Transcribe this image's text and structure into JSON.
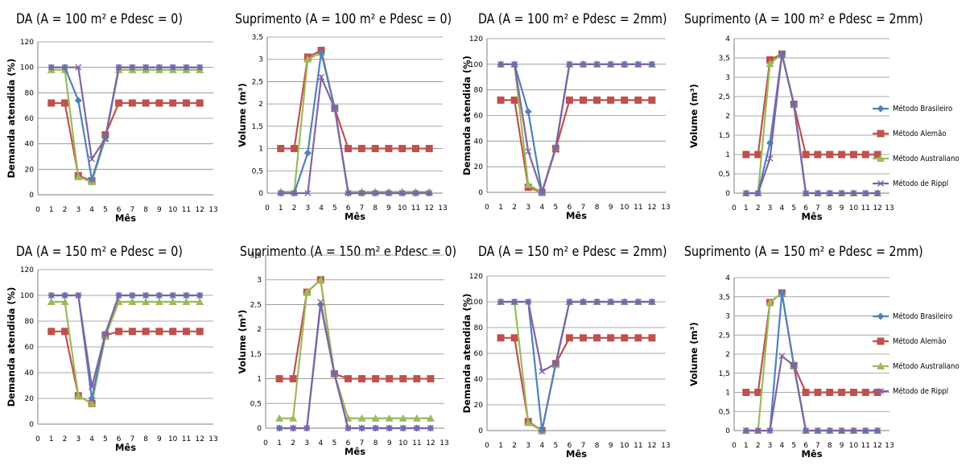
{
  "series_style": [
    {
      "name": "Método Brasileiro",
      "color": "#4F81BD",
      "marker": "diamond"
    },
    {
      "name": "Método Alemão",
      "color": "#C0504D",
      "marker": "square"
    },
    {
      "name": "Método Australiano",
      "color": "#9BBB59",
      "marker": "triangle"
    },
    {
      "name": "Método de Rippl",
      "color": "#8064A2",
      "marker": "x"
    }
  ],
  "chart_data": [
    {
      "type": "line",
      "title": "DA (A = 100 m² e Pdesc = 0)",
      "xlabel": "Mês",
      "ylabel": "Demanda atendida (%)",
      "xlim": [
        0,
        13
      ],
      "ylim": [
        0,
        120
      ],
      "xticks": [
        "0",
        "1",
        "2",
        "3",
        "4",
        "5",
        "6",
        "7",
        "8",
        "9",
        "10",
        "11",
        "12",
        "13"
      ],
      "yticks": [
        "0",
        "20",
        "40",
        "60",
        "80",
        "100",
        "120"
      ],
      "grid": true,
      "legend": "none",
      "x": [
        1,
        2,
        3,
        4,
        5,
        6,
        7,
        8,
        9,
        10,
        11,
        12
      ],
      "series": [
        {
          "name": "Método Brasileiro",
          "values": [
            100,
            100,
            74,
            12,
            45,
            100,
            100,
            100,
            100,
            100,
            100,
            100
          ]
        },
        {
          "name": "Método Alemão",
          "values": [
            72,
            72,
            15,
            11,
            47,
            72,
            72,
            72,
            72,
            72,
            72,
            72
          ]
        },
        {
          "name": "Método Australiano",
          "values": [
            98,
            98,
            14,
            10,
            44,
            98,
            98,
            98,
            98,
            98,
            98,
            98
          ]
        },
        {
          "name": "Método de Rippl",
          "values": [
            100,
            100,
            100,
            28,
            44,
            100,
            100,
            100,
            100,
            100,
            100,
            100
          ]
        }
      ]
    },
    {
      "type": "line",
      "title": "Suprimento (A = 100 m² e Pdesc = 0)",
      "xlabel": "Mês",
      "ylabel": "Volume (m³)",
      "xlim": [
        0,
        13
      ],
      "ylim": [
        0,
        3.5
      ],
      "xticks": [
        "0",
        "1",
        "2",
        "3",
        "4",
        "5",
        "6",
        "7",
        "8",
        "9",
        "10",
        "11",
        "12",
        "13"
      ],
      "yticks": [
        "0",
        "0,5",
        "1",
        "1,5",
        "2",
        "2,5",
        "3",
        "3,5"
      ],
      "grid": true,
      "legend": "none",
      "x": [
        1,
        2,
        3,
        4,
        5,
        6,
        7,
        8,
        9,
        10,
        11,
        12
      ],
      "series": [
        {
          "name": "Método Brasileiro",
          "values": [
            0,
            0,
            0.9,
            3.15,
            1.9,
            0,
            0,
            0,
            0,
            0,
            0,
            0
          ]
        },
        {
          "name": "Método Alemão",
          "values": [
            1,
            1,
            3.05,
            3.2,
            1.9,
            1,
            1,
            1,
            1,
            1,
            1,
            1
          ]
        },
        {
          "name": "Método Australiano",
          "values": [
            0.03,
            0.03,
            3,
            3.15,
            1.9,
            0.03,
            0.03,
            0.03,
            0.03,
            0.03,
            0.03,
            0.03
          ]
        },
        {
          "name": "Método de Rippl",
          "values": [
            0,
            0,
            0,
            2.6,
            1.9,
            0,
            0,
            0,
            0,
            0,
            0,
            0
          ]
        }
      ]
    },
    {
      "type": "line",
      "title": "DA (A = 100 m² e Pdesc = 2mm)",
      "xlabel": "Mês",
      "ylabel": "Demanda atendida (%)",
      "xlim": [
        0,
        13
      ],
      "ylim": [
        0,
        120
      ],
      "xticks": [
        "0",
        "1",
        "2",
        "3",
        "4",
        "5",
        "6",
        "7",
        "8",
        "9",
        "10",
        "11",
        "12",
        "13"
      ],
      "yticks": [
        "0",
        "20",
        "40",
        "60",
        "80",
        "100",
        "120"
      ],
      "grid": true,
      "legend": "none",
      "x": [
        1,
        2,
        3,
        4,
        5,
        6,
        7,
        8,
        9,
        10,
        11,
        12
      ],
      "series": [
        {
          "name": "Método Brasileiro",
          "values": [
            100,
            100,
            63,
            0,
            35,
            100,
            100,
            100,
            100,
            100,
            100,
            100
          ]
        },
        {
          "name": "Método Alemão",
          "values": [
            72,
            72,
            4,
            0,
            34,
            72,
            72,
            72,
            72,
            72,
            72,
            72
          ]
        },
        {
          "name": "Método Australiano",
          "values": [
            100,
            100,
            6,
            0,
            35,
            100,
            100,
            100,
            100,
            100,
            100,
            100
          ]
        },
        {
          "name": "Método de Rippl",
          "values": [
            100,
            100,
            32,
            0,
            35,
            100,
            100,
            100,
            100,
            100,
            100,
            100
          ]
        }
      ]
    },
    {
      "type": "line",
      "title": "Suprimento (A = 100 m² e Pdesc = 2mm)",
      "xlabel": "Mês",
      "ylabel": "Volume (m³)",
      "xlim": [
        0,
        13
      ],
      "ylim": [
        0,
        4
      ],
      "xticks": [
        "0",
        "1",
        "2",
        "3",
        "4",
        "5",
        "6",
        "7",
        "8",
        "9",
        "10",
        "11",
        "12",
        "13"
      ],
      "yticks": [
        "0",
        "0,5",
        "1",
        "1,5",
        "2",
        "2,5",
        "3",
        "3,5",
        "4"
      ],
      "grid": true,
      "legend": "right",
      "x": [
        1,
        2,
        3,
        4,
        5,
        6,
        7,
        8,
        9,
        10,
        11,
        12
      ],
      "series": [
        {
          "name": "Método Brasileiro",
          "values": [
            0,
            0,
            1.3,
            3.6,
            2.3,
            0,
            0,
            0,
            0,
            0,
            0,
            0
          ]
        },
        {
          "name": "Método Alemão",
          "values": [
            1,
            1,
            3.45,
            3.6,
            2.3,
            1,
            1,
            1,
            1,
            1,
            1,
            1
          ]
        },
        {
          "name": "Método Australiano",
          "values": [
            0,
            0,
            3.35,
            3.6,
            2.3,
            0,
            0,
            0,
            0,
            0,
            0,
            0
          ]
        },
        {
          "name": "Método de Rippl",
          "values": [
            0,
            0,
            0.9,
            3.6,
            2.3,
            0,
            0,
            0,
            0,
            0,
            0,
            0
          ]
        }
      ]
    },
    {
      "type": "line",
      "title": "DA (A = 150 m² e Pdesc = 0)",
      "xlabel": "Mês",
      "ylabel": "Demanda atendida (%)",
      "xlim": [
        0,
        13
      ],
      "ylim": [
        0,
        120
      ],
      "xticks": [
        "0",
        "1",
        "2",
        "3",
        "4",
        "5",
        "6",
        "7",
        "8",
        "9",
        "10",
        "11",
        "12",
        "13"
      ],
      "yticks": [
        "0",
        "20",
        "40",
        "60",
        "80",
        "100",
        "120"
      ],
      "grid": true,
      "legend": "none",
      "x": [
        1,
        2,
        3,
        4,
        5,
        6,
        7,
        8,
        9,
        10,
        11,
        12
      ],
      "series": [
        {
          "name": "Método Brasileiro",
          "values": [
            100,
            100,
            100,
            20,
            70,
            100,
            100,
            100,
            100,
            100,
            100,
            100
          ]
        },
        {
          "name": "Método Alemão",
          "values": [
            72,
            72,
            22,
            16,
            69,
            72,
            72,
            72,
            72,
            72,
            72,
            72
          ]
        },
        {
          "name": "Método Australiano",
          "values": [
            95,
            95,
            22,
            16,
            68,
            95,
            95,
            95,
            95,
            95,
            95,
            95
          ]
        },
        {
          "name": "Método de Rippl",
          "values": [
            100,
            100,
            100,
            29,
            70,
            100,
            100,
            100,
            100,
            100,
            100,
            100
          ]
        }
      ]
    },
    {
      "type": "line",
      "title": "Suprimento (A = 150 m² e Pdesc = 0)",
      "xlabel": "Mês",
      "ylabel": "Volume (m³)",
      "xlim": [
        0,
        13
      ],
      "ylim": [
        0,
        3.5
      ],
      "xticks": [
        "0",
        "1",
        "2",
        "3",
        "4",
        "5",
        "6",
        "7",
        "8",
        "9",
        "10",
        "11",
        "12",
        "13"
      ],
      "yticks": [
        "0",
        "0,5",
        "1",
        "1,5",
        "2",
        "2,5",
        "3",
        "3,5"
      ],
      "grid": true,
      "legend": "none",
      "x": [
        1,
        2,
        3,
        4,
        5,
        6,
        7,
        8,
        9,
        10,
        11,
        12
      ],
      "series": [
        {
          "name": "Método Brasileiro",
          "values": [
            0,
            0,
            0,
            2.5,
            1.1,
            0,
            0,
            0,
            0,
            0,
            0,
            0
          ]
        },
        {
          "name": "Método Alemão",
          "values": [
            1,
            1,
            2.75,
            3,
            1.1,
            1,
            1,
            1,
            1,
            1,
            1,
            1
          ]
        },
        {
          "name": "Método Australiano",
          "values": [
            0.2,
            0.2,
            2.75,
            3,
            1.1,
            0.2,
            0.2,
            0.2,
            0.2,
            0.2,
            0.2,
            0.2
          ]
        },
        {
          "name": "Método de Rippl",
          "values": [
            0,
            0,
            0,
            2.55,
            1.1,
            0,
            0,
            0,
            0,
            0,
            0,
            0
          ]
        }
      ]
    },
    {
      "type": "line",
      "title": "DA (A = 150 m² e Pdesc = 2mm)",
      "xlabel": "Mês",
      "ylabel": "Demanda atendida (%)",
      "xlim": [
        0,
        13
      ],
      "ylim": [
        0,
        120
      ],
      "xticks": [
        "0",
        "1",
        "2",
        "3",
        "4",
        "5",
        "6",
        "7",
        "8",
        "9",
        "10",
        "11",
        "12",
        "13"
      ],
      "yticks": [
        "0",
        "20",
        "40",
        "60",
        "80",
        "100",
        "120"
      ],
      "grid": true,
      "legend": "none",
      "x": [
        1,
        2,
        3,
        4,
        5,
        6,
        7,
        8,
        9,
        10,
        11,
        12
      ],
      "series": [
        {
          "name": "Método Brasileiro",
          "values": [
            100,
            100,
            100,
            0,
            52,
            100,
            100,
            100,
            100,
            100,
            100,
            100
          ]
        },
        {
          "name": "Método Alemão",
          "values": [
            72,
            72,
            7,
            0,
            52,
            72,
            72,
            72,
            72,
            72,
            72,
            72
          ]
        },
        {
          "name": "Método Australiano",
          "values": [
            100,
            100,
            6,
            0,
            51,
            100,
            100,
            100,
            100,
            100,
            100,
            100
          ]
        },
        {
          "name": "Método de Rippl",
          "values": [
            100,
            100,
            100,
            46,
            52,
            100,
            100,
            100,
            100,
            100,
            100,
            100
          ]
        }
      ]
    },
    {
      "type": "line",
      "title": "Suprimento (A = 150 m² e Pdesc = 2mm)",
      "xlabel": "Mês",
      "ylabel": "Volume (m³)",
      "xlim": [
        0,
        13
      ],
      "ylim": [
        0,
        4
      ],
      "xticks": [
        "0",
        "1",
        "2",
        "3",
        "4",
        "5",
        "6",
        "7",
        "8",
        "9",
        "10",
        "11",
        "12",
        "13"
      ],
      "yticks": [
        "0",
        "0,5",
        "1",
        "1,5",
        "2",
        "2,5",
        "3",
        "3,5",
        "4"
      ],
      "grid": true,
      "legend": "right",
      "x": [
        1,
        2,
        3,
        4,
        5,
        6,
        7,
        8,
        9,
        10,
        11,
        12
      ],
      "series": [
        {
          "name": "Método Brasileiro",
          "values": [
            0,
            0,
            0,
            3.6,
            1.7,
            0,
            0,
            0,
            0,
            0,
            0,
            0
          ]
        },
        {
          "name": "Método Alemão",
          "values": [
            1,
            1,
            3.35,
            3.6,
            1.7,
            1,
            1,
            1,
            1,
            1,
            1,
            1
          ]
        },
        {
          "name": "Método Australiano",
          "values": [
            0,
            0,
            3.35,
            3.6,
            1.7,
            0,
            0,
            0,
            0,
            0,
            0,
            0
          ]
        },
        {
          "name": "Método de Rippl",
          "values": [
            0,
            0,
            0,
            1.95,
            1.7,
            0,
            0,
            0,
            0,
            0,
            0,
            0
          ]
        }
      ]
    }
  ]
}
